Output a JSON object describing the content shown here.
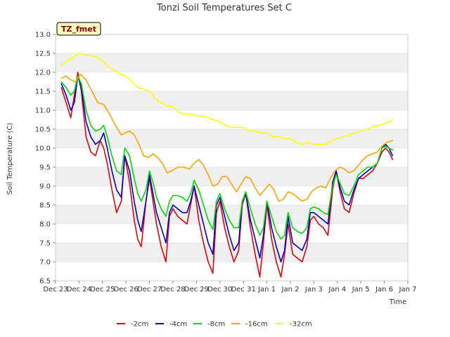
{
  "chart_data": {
    "type": "line",
    "title": "Tonzi Soil Temperatures Set C",
    "xlabel": "Time",
    "ylabel": "Soil Temperature (C)",
    "badge": "TZ_fmet",
    "ylim": [
      6.5,
      13.0
    ],
    "xlim": [
      0,
      15
    ],
    "y_ticks": [
      6.5,
      7.0,
      7.5,
      8.0,
      8.5,
      9.0,
      9.5,
      10.0,
      10.5,
      11.0,
      11.5,
      12.0,
      12.5,
      13.0
    ],
    "y_tick_labels": [
      "6.5",
      "7.0",
      "7.5",
      "8.0",
      "8.5",
      "9.0",
      "9.5",
      "10.0",
      "10.5",
      "11.0",
      "11.5",
      "12.0",
      "12.5",
      "13.0"
    ],
    "x_ticks": [
      0,
      1,
      2,
      3,
      4,
      5,
      6,
      7,
      8,
      9,
      10,
      11,
      12,
      13,
      14,
      15
    ],
    "x_tick_labels": [
      "Dec 23",
      "Dec 24",
      "Dec 25",
      "Dec 26",
      "Dec 27",
      "Dec 28",
      "Dec 29",
      "Dec 30",
      "Dec 31",
      "Jan 1",
      "Jan 2",
      "Jan 3",
      "Jan 4",
      "Jan 5",
      "Jan 6",
      "Jan 7"
    ],
    "grid": true,
    "legend_position": "bottom",
    "series": [
      {
        "name": "-2cm",
        "color": "#e8000b",
        "x": [
          0.25,
          0.45,
          0.65,
          0.8,
          0.95,
          1.1,
          1.3,
          1.5,
          1.7,
          1.9,
          2.05,
          2.2,
          2.4,
          2.6,
          2.8,
          2.95,
          3.15,
          3.35,
          3.5,
          3.65,
          3.85,
          4.0,
          4.15,
          4.3,
          4.5,
          4.7,
          4.85,
          5.0,
          5.2,
          5.4,
          5.6,
          5.75,
          5.9,
          6.1,
          6.3,
          6.5,
          6.7,
          6.85,
          7.0,
          7.2,
          7.4,
          7.6,
          7.8,
          7.95,
          8.1,
          8.3,
          8.5,
          8.7,
          8.85,
          9.0,
          9.2,
          9.4,
          9.6,
          9.75,
          9.9,
          10.1,
          10.3,
          10.5,
          10.7,
          10.85,
          11.0,
          11.2,
          11.4,
          11.6,
          11.8,
          11.95,
          12.1,
          12.3,
          12.5,
          12.7,
          12.9,
          13.1,
          13.3,
          13.5,
          13.7,
          13.9,
          14.05,
          14.2,
          14.35
        ],
        "y": [
          11.6,
          11.2,
          10.8,
          11.4,
          12.0,
          11.5,
          10.3,
          9.9,
          9.8,
          10.2,
          10.0,
          9.6,
          8.9,
          8.3,
          8.6,
          9.8,
          9.1,
          8.1,
          7.6,
          7.4,
          8.6,
          9.2,
          8.6,
          8.0,
          7.4,
          7.0,
          8.2,
          8.4,
          8.2,
          8.1,
          8.0,
          8.5,
          9.0,
          8.1,
          7.5,
          7.0,
          6.7,
          8.3,
          8.6,
          7.9,
          7.4,
          7.0,
          7.3,
          8.5,
          8.8,
          7.9,
          7.2,
          6.6,
          7.5,
          8.5,
          7.6,
          7.0,
          6.6,
          7.2,
          8.0,
          7.2,
          7.1,
          7.0,
          7.4,
          8.1,
          8.2,
          8.0,
          7.9,
          7.7,
          8.9,
          9.4,
          8.9,
          8.4,
          8.3,
          8.8,
          9.2,
          9.2,
          9.3,
          9.4,
          9.6,
          9.9,
          10.0,
          9.9,
          9.7
        ]
      },
      {
        "name": "-4cm",
        "color": "#0000cc",
        "x": [
          0.25,
          0.45,
          0.65,
          0.8,
          0.95,
          1.1,
          1.3,
          1.5,
          1.7,
          1.9,
          2.05,
          2.2,
          2.4,
          2.6,
          2.8,
          2.95,
          3.15,
          3.35,
          3.5,
          3.65,
          3.85,
          4.0,
          4.15,
          4.3,
          4.5,
          4.7,
          4.85,
          5.0,
          5.2,
          5.4,
          5.6,
          5.75,
          5.9,
          6.1,
          6.3,
          6.5,
          6.7,
          6.85,
          7.0,
          7.2,
          7.4,
          7.6,
          7.8,
          7.95,
          8.1,
          8.3,
          8.5,
          8.7,
          8.85,
          9.0,
          9.2,
          9.4,
          9.6,
          9.75,
          9.9,
          10.1,
          10.3,
          10.5,
          10.7,
          10.85,
          11.0,
          11.2,
          11.4,
          11.6,
          11.8,
          11.95,
          12.1,
          12.3,
          12.5,
          12.7,
          12.9,
          13.1,
          13.3,
          13.5,
          13.7,
          13.9,
          14.05,
          14.2,
          14.35
        ],
        "y": [
          11.7,
          11.4,
          11.0,
          11.2,
          11.9,
          11.6,
          10.7,
          10.3,
          10.1,
          10.2,
          10.4,
          10.0,
          9.4,
          8.9,
          8.7,
          9.8,
          9.4,
          8.6,
          8.1,
          7.8,
          8.6,
          9.3,
          8.8,
          8.3,
          7.9,
          7.5,
          8.3,
          8.5,
          8.4,
          8.3,
          8.3,
          8.6,
          9.0,
          8.5,
          8.0,
          7.5,
          7.2,
          8.5,
          8.7,
          8.2,
          7.7,
          7.3,
          7.5,
          8.6,
          8.8,
          8.1,
          7.6,
          7.1,
          7.7,
          8.6,
          7.9,
          7.4,
          7.0,
          7.3,
          8.2,
          7.5,
          7.4,
          7.3,
          7.6,
          8.3,
          8.3,
          8.2,
          8.1,
          8.0,
          9.1,
          9.4,
          9.0,
          8.6,
          8.5,
          8.9,
          9.2,
          9.3,
          9.4,
          9.5,
          9.6,
          10.0,
          10.1,
          10.0,
          9.8
        ]
      },
      {
        "name": "-8cm",
        "color": "#00dd00",
        "x": [
          0.25,
          0.45,
          0.65,
          0.8,
          0.95,
          1.1,
          1.3,
          1.5,
          1.7,
          1.9,
          2.05,
          2.2,
          2.4,
          2.6,
          2.8,
          2.95,
          3.15,
          3.35,
          3.5,
          3.65,
          3.85,
          4.0,
          4.15,
          4.3,
          4.5,
          4.7,
          4.85,
          5.0,
          5.2,
          5.4,
          5.6,
          5.75,
          5.9,
          6.1,
          6.3,
          6.5,
          6.7,
          6.85,
          7.0,
          7.2,
          7.4,
          7.6,
          7.8,
          7.95,
          8.1,
          8.3,
          8.5,
          8.7,
          8.85,
          9.0,
          9.2,
          9.4,
          9.6,
          9.75,
          9.9,
          10.1,
          10.3,
          10.5,
          10.7,
          10.85,
          11.0,
          11.2,
          11.4,
          11.6,
          11.8,
          11.95,
          12.1,
          12.3,
          12.5,
          12.7,
          12.9,
          13.1,
          13.3,
          13.5,
          13.7,
          13.9,
          14.05,
          14.2,
          14.35
        ],
        "y": [
          11.75,
          11.6,
          11.4,
          11.5,
          11.9,
          11.7,
          11.0,
          10.6,
          10.45,
          10.5,
          10.6,
          10.3,
          9.8,
          9.4,
          9.3,
          10.0,
          9.8,
          9.2,
          8.8,
          8.6,
          8.9,
          9.4,
          9.1,
          8.7,
          8.4,
          8.2,
          8.6,
          8.75,
          8.75,
          8.7,
          8.6,
          8.8,
          9.15,
          8.9,
          8.5,
          8.1,
          7.85,
          8.6,
          8.8,
          8.4,
          8.1,
          7.9,
          7.9,
          8.6,
          8.85,
          8.4,
          8.0,
          7.7,
          7.9,
          8.6,
          8.2,
          7.8,
          7.6,
          7.7,
          8.3,
          7.9,
          7.8,
          7.75,
          7.9,
          8.4,
          8.45,
          8.4,
          8.3,
          8.25,
          9.0,
          9.3,
          9.1,
          8.8,
          8.75,
          9.0,
          9.3,
          9.4,
          9.5,
          9.5,
          9.6,
          10.0,
          10.05,
          10.0,
          9.95
        ]
      },
      {
        "name": "-16cm",
        "color": "#ffa500",
        "x": [
          0.25,
          0.45,
          0.65,
          0.85,
          1.05,
          1.3,
          1.55,
          1.8,
          2.05,
          2.3,
          2.55,
          2.8,
          2.95,
          3.15,
          3.35,
          3.55,
          3.75,
          3.95,
          4.15,
          4.35,
          4.55,
          4.75,
          4.95,
          5.2,
          5.45,
          5.7,
          5.9,
          6.1,
          6.3,
          6.5,
          6.7,
          6.9,
          7.1,
          7.3,
          7.5,
          7.7,
          7.9,
          8.1,
          8.3,
          8.5,
          8.7,
          8.9,
          9.1,
          9.3,
          9.5,
          9.7,
          9.9,
          10.1,
          10.3,
          10.5,
          10.7,
          10.9,
          11.1,
          11.3,
          11.5,
          11.7,
          11.9,
          12.1,
          12.3,
          12.5,
          12.7,
          12.9,
          13.1,
          13.3,
          13.5,
          13.7,
          13.9,
          14.1,
          14.35
        ],
        "y": [
          11.85,
          11.9,
          11.8,
          11.75,
          11.95,
          11.8,
          11.5,
          11.2,
          11.15,
          10.9,
          10.6,
          10.35,
          10.4,
          10.45,
          10.35,
          10.1,
          9.8,
          9.75,
          9.85,
          9.75,
          9.6,
          9.35,
          9.4,
          9.5,
          9.5,
          9.45,
          9.6,
          9.7,
          9.55,
          9.3,
          9.0,
          9.05,
          9.25,
          9.25,
          9.05,
          8.85,
          9.05,
          9.25,
          9.2,
          8.95,
          8.75,
          8.9,
          9.05,
          8.9,
          8.6,
          8.65,
          8.85,
          8.8,
          8.7,
          8.6,
          8.65,
          8.85,
          8.95,
          9.0,
          8.95,
          9.2,
          9.4,
          9.5,
          9.45,
          9.35,
          9.4,
          9.55,
          9.7,
          9.8,
          9.85,
          9.9,
          10.05,
          10.15,
          10.2
        ]
      },
      {
        "name": "-32cm",
        "color": "#ffff00",
        "x": [
          0.25,
          0.5,
          0.75,
          1.0,
          1.25,
          1.5,
          1.75,
          2.0,
          2.25,
          2.5,
          2.75,
          3.0,
          3.25,
          3.5,
          3.75,
          4.0,
          4.25,
          4.5,
          4.75,
          5.0,
          5.25,
          5.5,
          5.75,
          6.0,
          6.25,
          6.5,
          6.75,
          7.0,
          7.25,
          7.5,
          7.75,
          8.0,
          8.25,
          8.5,
          8.75,
          9.0,
          9.25,
          9.5,
          9.75,
          10.0,
          10.25,
          10.5,
          10.75,
          11.0,
          11.25,
          11.5,
          11.75,
          12.0,
          12.25,
          12.5,
          12.75,
          13.0,
          13.25,
          13.5,
          13.75,
          14.0,
          14.25,
          14.35
        ],
        "y": [
          12.2,
          12.3,
          12.4,
          12.5,
          12.45,
          12.45,
          12.4,
          12.3,
          12.15,
          12.05,
          11.95,
          11.9,
          11.75,
          11.6,
          11.55,
          11.5,
          11.3,
          11.2,
          11.1,
          11.1,
          10.95,
          10.9,
          10.9,
          10.85,
          10.85,
          10.8,
          10.75,
          10.7,
          10.6,
          10.55,
          10.55,
          10.55,
          10.45,
          10.45,
          10.4,
          10.4,
          10.3,
          10.3,
          10.25,
          10.25,
          10.15,
          10.1,
          10.15,
          10.1,
          10.1,
          10.1,
          10.2,
          10.25,
          10.3,
          10.35,
          10.4,
          10.45,
          10.5,
          10.55,
          10.6,
          10.65,
          10.7,
          10.75
        ]
      }
    ]
  }
}
